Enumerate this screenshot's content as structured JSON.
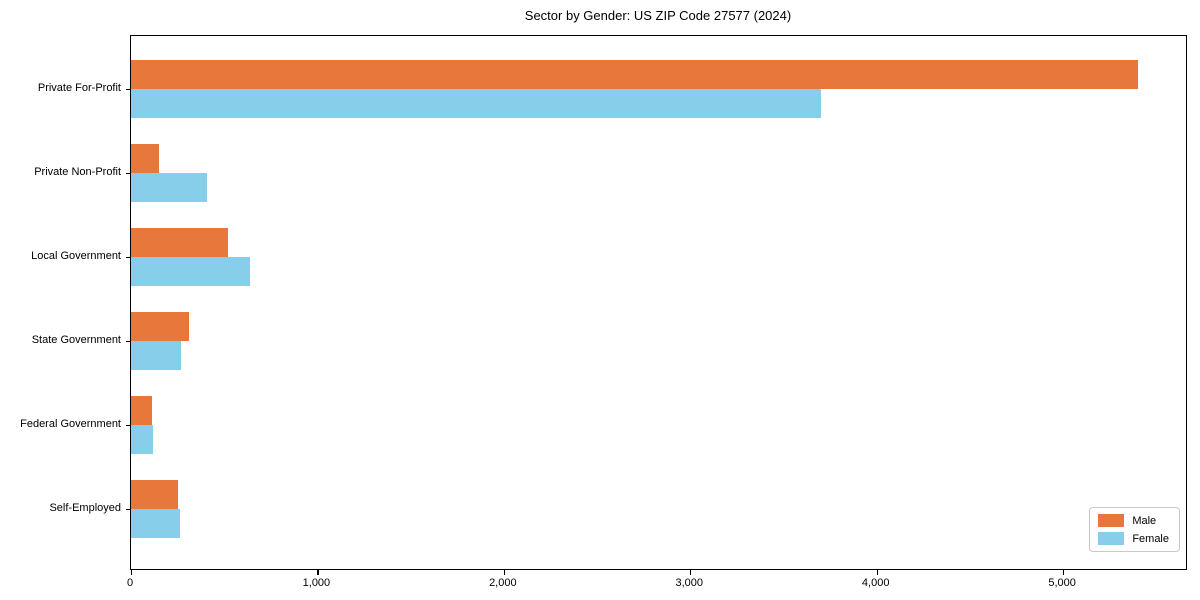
{
  "title": "Sector by Gender: US ZIP Code 27577 (2024)",
  "chart_data": {
    "type": "bar",
    "orientation": "horizontal",
    "title": "Sector by Gender: US ZIP Code 27577 (2024)",
    "xlabel": "",
    "ylabel": "",
    "categories": [
      "Private For-Profit",
      "Private Non-Profit",
      "Local Government",
      "State Government",
      "Federal Government",
      "Self-Employed"
    ],
    "series": [
      {
        "name": "Male",
        "color": "#E8773C",
        "values": [
          5400,
          150,
          520,
          310,
          115,
          250
        ]
      },
      {
        "name": "Female",
        "color": "#87CEEB",
        "values": [
          3700,
          410,
          640,
          270,
          120,
          265
        ]
      }
    ],
    "xlim": [
      0,
      5670
    ],
    "xticks": [
      0,
      1000,
      2000,
      3000,
      4000,
      5000
    ],
    "xtick_labels": [
      "0",
      "1,000",
      "2,000",
      "3,000",
      "4,000",
      "5,000"
    ],
    "grid": false,
    "legend_position": "lower right",
    "frame": true
  },
  "legend": {
    "items": [
      {
        "label": "Male",
        "color": "#E8773C"
      },
      {
        "label": "Female",
        "color": "#87CEEB"
      }
    ]
  }
}
